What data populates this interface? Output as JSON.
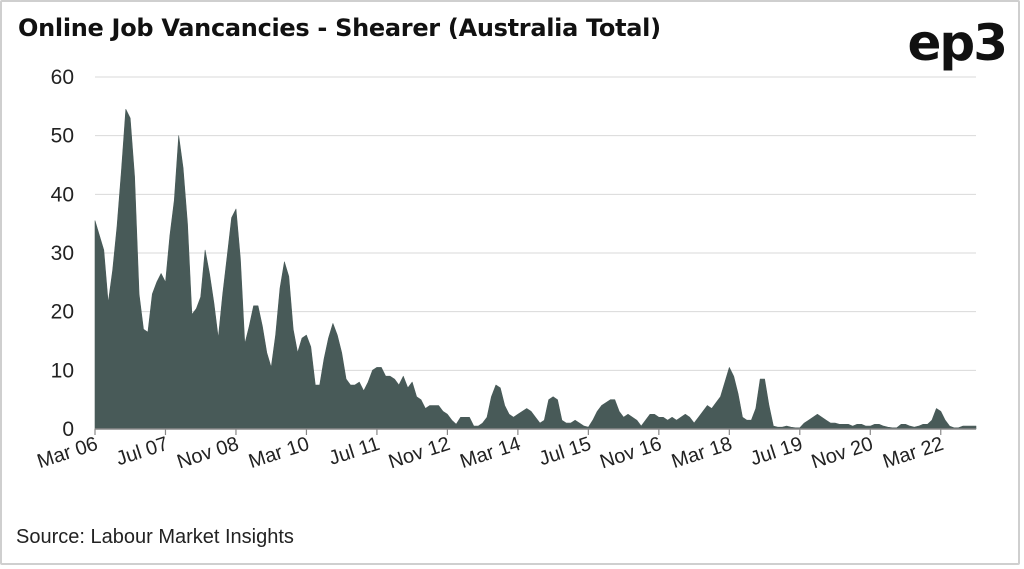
{
  "header": {
    "title": "Online Job Vancancies - Shearer (Australia Total)",
    "logo": "ep3"
  },
  "footer": {
    "source": "Source: Labour Market Insights"
  },
  "colors": {
    "area_fill": "#485a58",
    "grid": "#d9d9d9",
    "axis": "#888888",
    "text": "#222222"
  },
  "chart_data": {
    "type": "area",
    "title": "Online Job Vancancies - Shearer (Australia Total)",
    "ylim": [
      0,
      60
    ],
    "yticks": [
      0,
      10,
      20,
      30,
      40,
      50,
      60
    ],
    "grid": true,
    "x_tick_labels": [
      "Mar 06",
      "Jul 07",
      "Nov 08",
      "Mar 10",
      "Jul 11",
      "Nov 12",
      "Mar 14",
      "Jul 15",
      "Nov 16",
      "Mar 18",
      "Jul 19",
      "Nov 20",
      "Mar 22"
    ],
    "x_tick_dates": [
      "2006-03",
      "2007-07",
      "2008-11",
      "2010-03",
      "2011-07",
      "2012-11",
      "2014-03",
      "2015-07",
      "2016-11",
      "2018-03",
      "2019-07",
      "2020-11",
      "2022-03"
    ],
    "x_range": [
      "2006-03",
      "2022-11"
    ],
    "series": [
      {
        "points": [
          [
            "2006-03",
            35.5
          ],
          [
            "2006-04",
            33
          ],
          [
            "2006-05",
            30.5
          ],
          [
            "2006-06",
            21.5
          ],
          [
            "2006-07",
            27
          ],
          [
            "2006-08",
            34.5
          ],
          [
            "2006-09",
            44
          ],
          [
            "2006-10",
            54.5
          ],
          [
            "2006-11",
            53
          ],
          [
            "2006-12",
            43
          ],
          [
            "2007-01",
            23
          ],
          [
            "2007-02",
            17
          ],
          [
            "2007-03",
            16.5
          ],
          [
            "2007-04",
            23
          ],
          [
            "2007-05",
            25
          ],
          [
            "2007-06",
            26.5
          ],
          [
            "2007-07",
            25
          ],
          [
            "2007-08",
            33
          ],
          [
            "2007-09",
            39
          ],
          [
            "2007-10",
            50
          ],
          [
            "2007-11",
            44.5
          ],
          [
            "2007-12",
            35
          ],
          [
            "2008-01",
            19.5
          ],
          [
            "2008-02",
            20.5
          ],
          [
            "2008-03",
            22.5
          ],
          [
            "2008-04",
            30.5
          ],
          [
            "2008-05",
            26.5
          ],
          [
            "2008-06",
            21.5
          ],
          [
            "2008-07",
            15.5
          ],
          [
            "2008-08",
            23
          ],
          [
            "2008-09",
            29.5
          ],
          [
            "2008-10",
            36
          ],
          [
            "2008-11",
            37.5
          ],
          [
            "2008-12",
            29
          ],
          [
            "2009-01",
            14.5
          ],
          [
            "2009-02",
            17.5
          ],
          [
            "2009-03",
            21
          ],
          [
            "2009-04",
            21
          ],
          [
            "2009-05",
            17.5
          ],
          [
            "2009-06",
            13
          ],
          [
            "2009-07",
            10.5
          ],
          [
            "2009-08",
            16
          ],
          [
            "2009-09",
            24
          ],
          [
            "2009-10",
            28.5
          ],
          [
            "2009-11",
            26
          ],
          [
            "2009-12",
            17
          ],
          [
            "2010-01",
            13
          ],
          [
            "2010-02",
            15.5
          ],
          [
            "2010-03",
            16
          ],
          [
            "2010-04",
            14
          ],
          [
            "2010-05",
            7.5
          ],
          [
            "2010-06",
            7.5
          ],
          [
            "2010-07",
            12
          ],
          [
            "2010-08",
            15.5
          ],
          [
            "2010-09",
            18
          ],
          [
            "2010-10",
            16
          ],
          [
            "2010-11",
            13
          ],
          [
            "2010-12",
            8.5
          ],
          [
            "2011-01",
            7.5
          ],
          [
            "2011-02",
            7.5
          ],
          [
            "2011-03",
            8
          ],
          [
            "2011-04",
            6.5
          ],
          [
            "2011-05",
            8
          ],
          [
            "2011-06",
            10
          ],
          [
            "2011-07",
            10.5
          ],
          [
            "2011-08",
            10.5
          ],
          [
            "2011-09",
            9
          ],
          [
            "2011-10",
            9
          ],
          [
            "2011-11",
            8.5
          ],
          [
            "2011-12",
            7.5
          ],
          [
            "2012-01",
            9
          ],
          [
            "2012-02",
            7
          ],
          [
            "2012-03",
            8
          ],
          [
            "2012-04",
            5.5
          ],
          [
            "2012-05",
            5
          ],
          [
            "2012-06",
            3.5
          ],
          [
            "2012-07",
            4
          ],
          [
            "2012-08",
            4
          ],
          [
            "2012-09",
            4
          ],
          [
            "2012-10",
            3
          ],
          [
            "2012-11",
            2.5
          ],
          [
            "2012-12",
            1.5
          ],
          [
            "2013-01",
            0.8
          ],
          [
            "2013-02",
            2
          ],
          [
            "2013-03",
            2
          ],
          [
            "2013-04",
            2
          ],
          [
            "2013-05",
            0.5
          ],
          [
            "2013-06",
            0.5
          ],
          [
            "2013-07",
            1
          ],
          [
            "2013-08",
            2
          ],
          [
            "2013-09",
            5.5
          ],
          [
            "2013-10",
            7.5
          ],
          [
            "2013-11",
            7
          ],
          [
            "2013-12",
            4
          ],
          [
            "2014-01",
            2.5
          ],
          [
            "2014-02",
            2
          ],
          [
            "2014-03",
            2.5
          ],
          [
            "2014-04",
            3
          ],
          [
            "2014-05",
            3.5
          ],
          [
            "2014-06",
            3
          ],
          [
            "2014-07",
            2
          ],
          [
            "2014-08",
            1
          ],
          [
            "2014-09",
            1.5
          ],
          [
            "2014-10",
            5
          ],
          [
            "2014-11",
            5.5
          ],
          [
            "2014-12",
            5
          ],
          [
            "2015-01",
            1.5
          ],
          [
            "2015-02",
            1
          ],
          [
            "2015-03",
            1
          ],
          [
            "2015-04",
            1.5
          ],
          [
            "2015-05",
            1
          ],
          [
            "2015-06",
            0.5
          ],
          [
            "2015-07",
            0.3
          ],
          [
            "2015-08",
            1.5
          ],
          [
            "2015-09",
            3
          ],
          [
            "2015-10",
            4
          ],
          [
            "2015-11",
            4.5
          ],
          [
            "2015-12",
            5
          ],
          [
            "2016-01",
            5
          ],
          [
            "2016-02",
            3
          ],
          [
            "2016-03",
            2
          ],
          [
            "2016-04",
            2.5
          ],
          [
            "2016-05",
            2
          ],
          [
            "2016-06",
            1.5
          ],
          [
            "2016-07",
            0.5
          ],
          [
            "2016-08",
            1.5
          ],
          [
            "2016-09",
            2.5
          ],
          [
            "2016-10",
            2.5
          ],
          [
            "2016-11",
            2
          ],
          [
            "2016-12",
            2
          ],
          [
            "2017-01",
            1.5
          ],
          [
            "2017-02",
            2
          ],
          [
            "2017-03",
            1.5
          ],
          [
            "2017-04",
            2
          ],
          [
            "2017-05",
            2.5
          ],
          [
            "2017-06",
            2
          ],
          [
            "2017-07",
            1
          ],
          [
            "2017-08",
            2
          ],
          [
            "2017-09",
            3
          ],
          [
            "2017-10",
            4
          ],
          [
            "2017-11",
            3.5
          ],
          [
            "2017-12",
            4.5
          ],
          [
            "2018-01",
            5.5
          ],
          [
            "2018-02",
            8
          ],
          [
            "2018-03",
            10.5
          ],
          [
            "2018-04",
            9
          ],
          [
            "2018-05",
            6
          ],
          [
            "2018-06",
            2
          ],
          [
            "2018-07",
            1.5
          ],
          [
            "2018-08",
            1.5
          ],
          [
            "2018-09",
            3.5
          ],
          [
            "2018-10",
            8.5
          ],
          [
            "2018-11",
            8.5
          ],
          [
            "2018-12",
            4
          ],
          [
            "2019-01",
            0.5
          ],
          [
            "2019-02",
            0.3
          ],
          [
            "2019-03",
            0.3
          ],
          [
            "2019-04",
            0.5
          ],
          [
            "2019-05",
            0.3
          ],
          [
            "2019-06",
            0.2
          ],
          [
            "2019-07",
            0.2
          ],
          [
            "2019-08",
            1
          ],
          [
            "2019-09",
            1.5
          ],
          [
            "2019-10",
            2
          ],
          [
            "2019-11",
            2.5
          ],
          [
            "2019-12",
            2
          ],
          [
            "2020-01",
            1.5
          ],
          [
            "2020-02",
            1
          ],
          [
            "2020-03",
            1
          ],
          [
            "2020-04",
            0.8
          ],
          [
            "2020-05",
            0.8
          ],
          [
            "2020-06",
            0.8
          ],
          [
            "2020-07",
            0.5
          ],
          [
            "2020-08",
            0.8
          ],
          [
            "2020-09",
            0.8
          ],
          [
            "2020-10",
            0.5
          ],
          [
            "2020-11",
            0.5
          ],
          [
            "2020-12",
            0.8
          ],
          [
            "2021-01",
            0.8
          ],
          [
            "2021-02",
            0.5
          ],
          [
            "2021-03",
            0.3
          ],
          [
            "2021-04",
            0.2
          ],
          [
            "2021-05",
            0.2
          ],
          [
            "2021-06",
            0.8
          ],
          [
            "2021-07",
            0.8
          ],
          [
            "2021-08",
            0.5
          ],
          [
            "2021-09",
            0.3
          ],
          [
            "2021-10",
            0.5
          ],
          [
            "2021-11",
            0.8
          ],
          [
            "2021-12",
            0.8
          ],
          [
            "2022-01",
            1.5
          ],
          [
            "2022-02",
            3.5
          ],
          [
            "2022-03",
            3
          ],
          [
            "2022-04",
            1.5
          ],
          [
            "2022-05",
            0.5
          ],
          [
            "2022-06",
            0.2
          ],
          [
            "2022-07",
            0.2
          ],
          [
            "2022-08",
            0.5
          ],
          [
            "2022-09",
            0.5
          ],
          [
            "2022-10",
            0.5
          ],
          [
            "2022-11",
            0.5
          ]
        ]
      }
    ]
  }
}
